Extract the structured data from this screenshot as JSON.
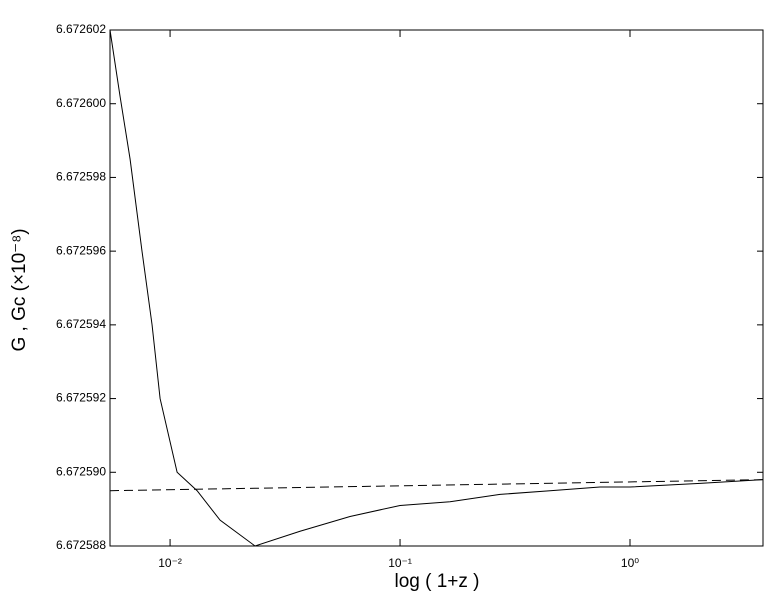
{
  "chart_data": {
    "type": "line",
    "xlabel": "log ( 1+z )",
    "ylabel": "G   ,   Gc      (×10⁻⁸)",
    "xscale": "log",
    "xlim": [
      0.00548,
      3.787
    ],
    "ylim": [
      6.672588,
      6.672602
    ],
    "xticks": [
      {
        "value": 0.01,
        "label": "10⁻²"
      },
      {
        "value": 0.1,
        "label": "10⁻¹"
      },
      {
        "value": 1,
        "label": "10⁰"
      }
    ],
    "yticks": [
      6.672588,
      {
        "value": 6.67259,
        "label": "6.672590"
      },
      6.672592,
      6.672594,
      6.672596,
      6.672598,
      {
        "value": 6.6726,
        "label": "6.672600"
      },
      6.672602
    ],
    "series": [
      {
        "color": "#000000",
        "dash": "solid",
        "x": [
          0.00548,
          0.00606,
          0.0067,
          0.00755,
          0.00835,
          0.00905,
          0.01073,
          0.01311,
          0.0165,
          0.02342,
          0.03674,
          0.0606,
          0.1,
          0.165,
          0.2721,
          0.449,
          0.74,
          1,
          2.015,
          3.787
        ],
        "values": [
          6.672602,
          6.6726002,
          6.6725985,
          6.672596,
          6.672594,
          6.672592,
          6.67259,
          6.6725895,
          6.6725887,
          6.672588,
          6.6725884,
          6.6725888,
          6.6725891,
          6.6725892,
          6.6725894,
          6.6725895,
          6.6725896,
          6.6725896,
          6.6725897,
          6.6725898
        ]
      },
      {
        "color": "#000000",
        "dash": "dashed",
        "x": [
          0.00548,
          3.787
        ],
        "values": [
          6.6725895,
          6.6725898
        ]
      }
    ]
  }
}
